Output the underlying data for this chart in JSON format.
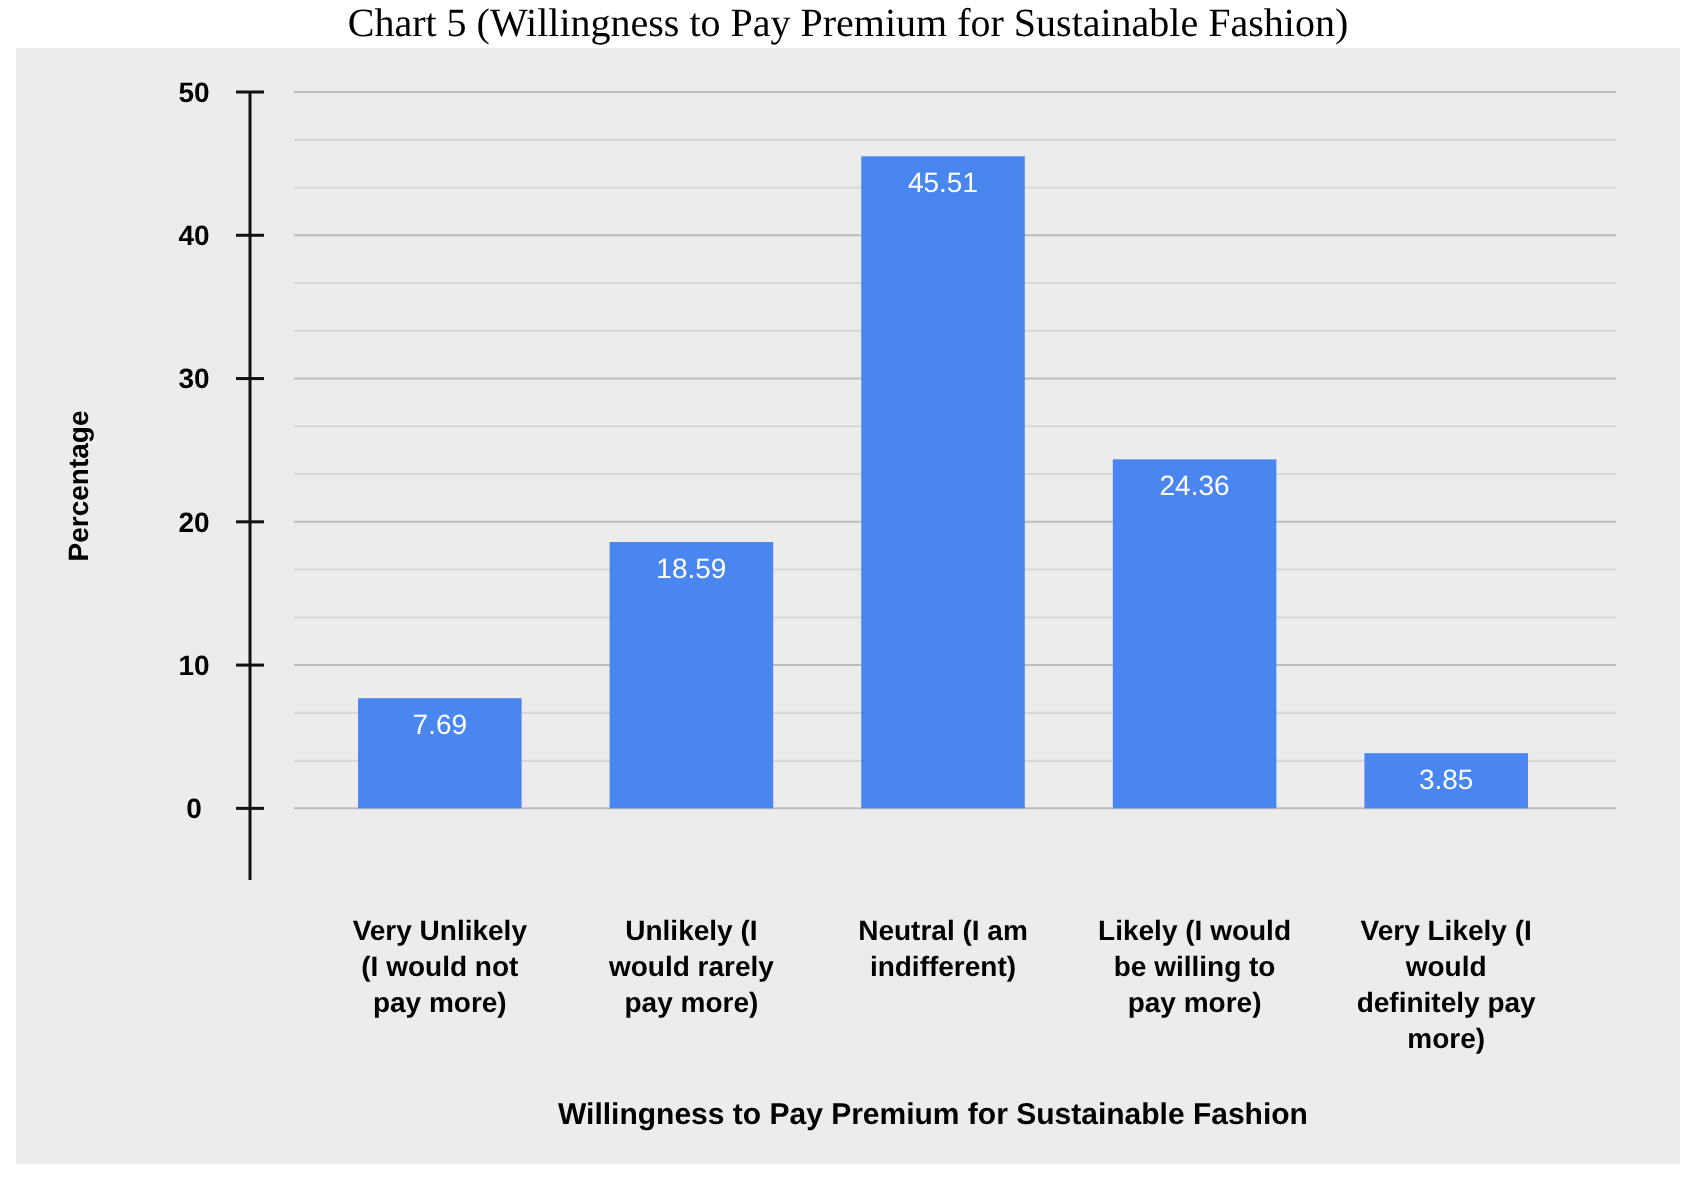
{
  "chart_data": {
    "type": "bar",
    "title": "Chart 5 (Willingness to Pay Premium for Sustainable Fashion)",
    "xlabel": "Willingness to Pay Premium for Sustainable Fashion",
    "ylabel": "Percentage",
    "categories": [
      "Very Unlikely (I would not pay more)",
      "Unlikely (I would rarely pay more)",
      "Neutral (I am indifferent)",
      "Likely (I would be willing to pay more)",
      "Very Likely (I would definitely pay more)"
    ],
    "values": [
      7.69,
      18.59,
      45.51,
      24.36,
      3.85
    ],
    "color": "#4a86f0",
    "data_labels": true,
    "ylim": [
      -5,
      50
    ],
    "yticks": [
      0,
      {
        "value": 3.33,
        "label": null
      },
      {
        "value": 6.67,
        "label": null
      },
      10,
      {
        "value": 13.33,
        "label": null
      },
      {
        "value": 16.67,
        "label": null
      },
      20,
      {
        "value": 23.33,
        "label": null
      },
      {
        "value": 26.67,
        "label": null
      },
      30,
      {
        "value": 33.33,
        "label": null
      },
      {
        "value": 36.67,
        "label": null
      },
      40,
      {
        "value": 43.33,
        "label": null
      },
      {
        "value": 46.67,
        "label": null
      },
      50
    ],
    "grid": "y"
  }
}
